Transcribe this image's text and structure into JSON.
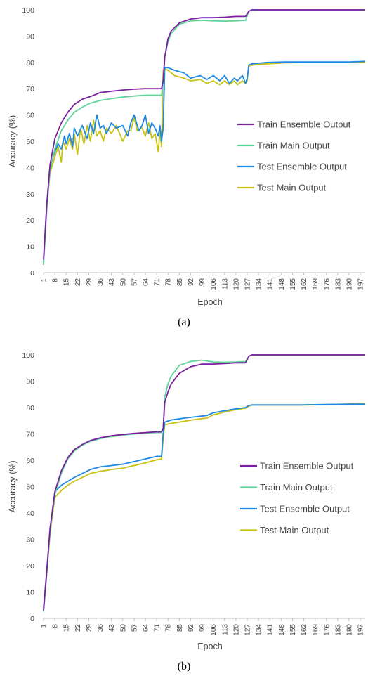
{
  "captions": {
    "a": "(a)",
    "b": "(b)"
  },
  "colors": {
    "train_ensemble": "#7B1FA2",
    "train_main": "#5FD39A",
    "test_ensemble": "#1E88E5",
    "test_main": "#C8C214",
    "axis": "#BFBFBF",
    "text": "#444444"
  },
  "chart_data": [
    {
      "type": "line",
      "xlabel": "Epoch",
      "ylabel": "Accuracy (%)",
      "ylim": [
        0,
        100
      ],
      "yticks": [
        "0",
        "10",
        "20",
        "30",
        "40",
        "50",
        "60",
        "70",
        "80",
        "90",
        "100"
      ],
      "xticks": [
        1,
        8,
        15,
        22,
        29,
        36,
        43,
        50,
        57,
        64,
        71,
        78,
        85,
        92,
        99,
        106,
        113,
        120,
        127,
        134,
        141,
        148,
        155,
        162,
        169,
        176,
        183,
        190,
        197
      ],
      "xlim": [
        1,
        200
      ],
      "grid": false,
      "legend": "right",
      "series": [
        {
          "name": "Train Ensemble Output",
          "x": [
            1,
            3,
            5,
            8,
            12,
            16,
            20,
            25,
            30,
            36,
            43,
            50,
            57,
            64,
            71,
            74,
            75,
            76,
            78,
            80,
            85,
            92,
            99,
            106,
            113,
            120,
            126,
            128,
            130,
            140,
            160,
            180,
            200
          ],
          "y": [
            5,
            26,
            41,
            51,
            57,
            61,
            64,
            66,
            67,
            68.5,
            69,
            69.5,
            69.8,
            70,
            70,
            70,
            73,
            82,
            89,
            92,
            95,
            96.5,
            97,
            97,
            97.2,
            97.5,
            97.5,
            99.5,
            100,
            100,
            100,
            100,
            100
          ]
        },
        {
          "name": "Train Main Output",
          "x": [
            1,
            3,
            5,
            8,
            12,
            16,
            20,
            25,
            30,
            36,
            43,
            50,
            57,
            64,
            71,
            74,
            75,
            76,
            78,
            80,
            85,
            92,
            99,
            106,
            113,
            120,
            126,
            128,
            130,
            140,
            160,
            180,
            200
          ],
          "y": [
            3,
            24,
            39,
            47,
            54,
            58,
            61,
            63,
            64.5,
            65.5,
            66.2,
            66.8,
            67.2,
            67.5,
            67.5,
            67.5,
            72,
            82,
            88,
            91,
            94.5,
            95.8,
            96,
            95.8,
            95.7,
            95.8,
            96,
            99.5,
            100,
            100,
            100,
            100,
            100
          ]
        },
        {
          "name": "Test Ensemble Output",
          "x": [
            1,
            3,
            5,
            8,
            10,
            12,
            14,
            15,
            17,
            19,
            20,
            22,
            25,
            28,
            30,
            32,
            34,
            36,
            38,
            40,
            43,
            46,
            50,
            53,
            55,
            57,
            60,
            62,
            64,
            66,
            68,
            70,
            72,
            73,
            74,
            75,
            76,
            78,
            82,
            88,
            92,
            98,
            102,
            106,
            110,
            113,
            116,
            119,
            121,
            124,
            126,
            127,
            128,
            130,
            140,
            150,
            160,
            170,
            180,
            190,
            200
          ],
          "y": [
            4,
            26,
            40,
            46,
            49,
            47,
            52,
            49,
            53,
            48,
            55,
            52,
            56,
            51,
            57,
            53,
            60,
            55,
            56,
            53,
            57,
            55,
            56,
            52,
            57,
            60,
            54,
            56,
            60,
            53,
            57,
            55,
            52,
            56,
            50,
            55,
            78,
            78,
            77,
            76,
            74,
            75,
            73.5,
            75,
            73,
            75,
            72,
            74,
            73,
            75,
            72,
            74,
            79,
            79.5,
            80,
            80.2,
            80.2,
            80.2,
            80.2,
            80.2,
            80.4
          ]
        },
        {
          "name": "Test Main Output",
          "x": [
            1,
            3,
            5,
            8,
            10,
            12,
            13,
            15,
            17,
            19,
            20,
            22,
            24,
            26,
            28,
            30,
            32,
            34,
            36,
            38,
            40,
            43,
            46,
            50,
            53,
            55,
            57,
            59,
            62,
            64,
            66,
            68,
            70,
            72,
            73,
            74,
            75,
            76,
            78,
            82,
            88,
            92,
            98,
            102,
            106,
            110,
            113,
            116,
            119,
            121,
            124,
            126,
            127,
            128,
            130,
            140,
            150,
            160,
            170,
            180,
            190,
            200
          ],
          "y": [
            3,
            25,
            38,
            44,
            48,
            42,
            50,
            47,
            51,
            47,
            53,
            45,
            55,
            49,
            56,
            50,
            58,
            52,
            54,
            50,
            55,
            53,
            56,
            50,
            54,
            54,
            59,
            54,
            55,
            52,
            57,
            51,
            53,
            46,
            54,
            48,
            77,
            77.5,
            77,
            75,
            74,
            73,
            73.5,
            72,
            73,
            71.5,
            73,
            71.5,
            73,
            71.5,
            73,
            72,
            73,
            78.5,
            79,
            79.5,
            79.8,
            80,
            80,
            80,
            80,
            80
          ]
        }
      ]
    },
    {
      "type": "line",
      "xlabel": "Epoch",
      "ylabel": "Accuracy (%)",
      "ylim": [
        0,
        100
      ],
      "yticks": [
        "0",
        "10",
        "20",
        "30",
        "40",
        "50",
        "60",
        "70",
        "80",
        "90",
        "100"
      ],
      "xticks": [
        1,
        8,
        15,
        22,
        29,
        36,
        43,
        50,
        57,
        64,
        71,
        78,
        85,
        92,
        99,
        106,
        113,
        120,
        127,
        134,
        141,
        148,
        155,
        162,
        169,
        176,
        183,
        190,
        197
      ],
      "xlim": [
        1,
        200
      ],
      "grid": false,
      "legend": "right",
      "series": [
        {
          "name": "Train Ensemble Output",
          "x": [
            1,
            3,
            5,
            8,
            12,
            16,
            20,
            25,
            30,
            36,
            43,
            50,
            57,
            64,
            71,
            74,
            75,
            76,
            78,
            80,
            85,
            92,
            99,
            106,
            113,
            120,
            126,
            128,
            130,
            140,
            160,
            180,
            200
          ],
          "y": [
            3,
            18,
            34,
            48,
            56,
            61,
            64,
            66,
            67.5,
            68.5,
            69.3,
            69.8,
            70.2,
            70.5,
            70.8,
            70.8,
            72,
            82,
            86,
            89,
            93,
            95.5,
            96.5,
            96.5,
            96.7,
            97,
            97,
            99.5,
            100,
            100,
            100,
            100,
            100
          ]
        },
        {
          "name": "Train Main Output",
          "x": [
            1,
            3,
            5,
            8,
            12,
            16,
            20,
            25,
            30,
            36,
            43,
            50,
            57,
            64,
            71,
            74,
            75,
            76,
            78,
            80,
            85,
            92,
            99,
            106,
            113,
            120,
            126,
            128,
            130,
            140,
            160,
            180,
            200
          ],
          "y": [
            2.5,
            17,
            33,
            47,
            55,
            60.5,
            63.5,
            65.7,
            67.2,
            68.2,
            69,
            69.5,
            70,
            70.3,
            70.5,
            70.5,
            72,
            84,
            89,
            92,
            96,
            97.5,
            98,
            97.3,
            97.2,
            97.3,
            97.5,
            99.5,
            100,
            100,
            100,
            100,
            100
          ]
        },
        {
          "name": "Test Ensemble Output",
          "x": [
            1,
            3,
            5,
            8,
            12,
            16,
            20,
            25,
            30,
            36,
            43,
            50,
            57,
            64,
            71,
            74,
            75,
            76,
            80,
            88,
            95,
            102,
            106,
            113,
            120,
            126,
            128,
            130,
            140,
            160,
            180,
            200
          ],
          "y": [
            4,
            18,
            33,
            48,
            50.5,
            52,
            53.5,
            55,
            56.5,
            57.5,
            58,
            58.5,
            59.5,
            60.5,
            61.5,
            61.5,
            70,
            74.5,
            75.3,
            76,
            76.5,
            77,
            78,
            78.8,
            79.5,
            80,
            80.8,
            81,
            81,
            81,
            81.2,
            81.3
          ]
        },
        {
          "name": "Test Main Output",
          "x": [
            1,
            3,
            5,
            8,
            12,
            16,
            20,
            25,
            30,
            36,
            43,
            50,
            57,
            64,
            71,
            74,
            75,
            76,
            80,
            88,
            95,
            102,
            106,
            113,
            120,
            126,
            128,
            130,
            140,
            160,
            180,
            200
          ],
          "y": [
            3,
            17,
            32,
            46,
            48.5,
            50.5,
            52,
            53.5,
            55,
            55.8,
            56.5,
            57,
            58,
            59,
            60.2,
            60.5,
            68,
            73.5,
            74,
            74.8,
            75.5,
            76,
            77.2,
            78.3,
            79.2,
            79.8,
            80.5,
            81,
            81,
            81,
            81.2,
            81.5
          ]
        }
      ]
    }
  ]
}
